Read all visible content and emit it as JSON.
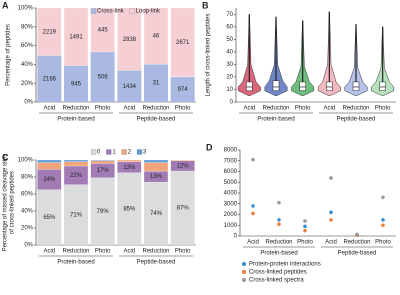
{
  "chart_data": [
    {
      "type": "bar",
      "label": "A",
      "stacking": "percent",
      "ylabel": "Percentage of peptides",
      "categories": [
        "Acid",
        "Reduction",
        "Photo",
        "Acid",
        "Reduction",
        "Photo"
      ],
      "groups": [
        "Protein-based",
        "Peptide-based"
      ],
      "series": [
        {
          "name": "Cross-link",
          "color": "#a9b9e2",
          "values": [
            2166,
            945,
            506,
            1434,
            31,
            974
          ]
        },
        {
          "name": "Loop-link",
          "color": "#f6cfd4",
          "values": [
            2219,
            1491,
            445,
            2838,
            46,
            2671
          ]
        }
      ],
      "ylim": [
        0,
        100
      ],
      "yticks": [
        {
          "value": 0,
          "label": "0%"
        },
        {
          "value": 20,
          "label": "20%"
        },
        {
          "value": 40,
          "label": "40%"
        },
        {
          "value": 60,
          "label": "60%"
        },
        {
          "value": 80,
          "label": "80%"
        },
        {
          "value": 100,
          "label": "100%"
        }
      ],
      "legend": "top"
    },
    {
      "type": "violin",
      "label": "B",
      "ylabel": "Length of cross-linked peptides",
      "categories": [
        "Acid",
        "Reduction",
        "Photo",
        "Acid",
        "Reduction",
        "Photo"
      ],
      "groups": [
        "Protein-based",
        "Peptide-based"
      ],
      "colors": [
        "#d9667a",
        "#6f86c7",
        "#6dbf7e",
        "#f2b8c0",
        "#b5c3e8",
        "#b7e0bd"
      ],
      "min": [
        5,
        5,
        5,
        5,
        5,
        5
      ],
      "q1": [
        9,
        9,
        9,
        9,
        9,
        9
      ],
      "median": [
        12,
        12,
        12,
        12,
        12,
        12
      ],
      "q3": [
        16,
        17,
        16,
        16,
        16,
        16
      ],
      "max": [
        70,
        68,
        65,
        72,
        62,
        60
      ],
      "ylim": [
        0,
        75
      ],
      "yticks": [
        0,
        10,
        20,
        30,
        40,
        50,
        60,
        70
      ]
    },
    {
      "type": "bar",
      "label": "C",
      "stacking": "percent",
      "ylabel": [
        "Percentage of missed cleavage sites",
        "of cross-linked peptides"
      ],
      "categories": [
        "Acid",
        "Reduction",
        "Photo",
        "Acid",
        "Reduction",
        "Photo"
      ],
      "groups": [
        "Protein-based",
        "Peptide-based"
      ],
      "series": [
        {
          "name": "0",
          "color": "#dcdcdc",
          "values": [
            65,
            71,
            79,
            85,
            74,
            87
          ],
          "value_labels": [
            "65%",
            "71%",
            "79%",
            "85%",
            "74%",
            "87%"
          ]
        },
        {
          "name": "1",
          "color": "#a27bb5",
          "values": [
            24,
            22,
            17,
            13,
            13,
            12
          ],
          "value_labels": [
            "24%",
            "22%",
            "17%",
            "13%",
            "13%",
            "12%"
          ]
        },
        {
          "name": "2",
          "color": "#f2a57a",
          "values": [
            8,
            5,
            3,
            2,
            10,
            1
          ]
        },
        {
          "name": "3",
          "color": "#5b9bd5",
          "values": [
            3,
            2,
            1,
            0,
            3,
            0
          ]
        }
      ],
      "ylim": [
        0,
        100
      ],
      "yticks": [
        {
          "value": 0,
          "label": "0%"
        },
        {
          "value": 20,
          "label": "20%"
        },
        {
          "value": 40,
          "label": "40%"
        },
        {
          "value": 60,
          "label": "60%"
        },
        {
          "value": 80,
          "label": "80%"
        },
        {
          "value": 100,
          "label": "100%"
        }
      ],
      "legend": "above"
    },
    {
      "type": "dot",
      "label": "D",
      "categories": [
        "Acid",
        "Reduction",
        "Photo",
        "Acid",
        "Reduction",
        "Photo"
      ],
      "groups": [
        "Protein-based",
        "Peptide-based"
      ],
      "series": [
        {
          "name": "Protein-protein interactions",
          "color": "#3a8fd0",
          "values": [
            2800,
            1500,
            900,
            2200,
            100,
            1500
          ]
        },
        {
          "name": "Cross-linked peptides",
          "color": "#ef7a3a",
          "values": [
            2100,
            1100,
            500,
            1500,
            80,
            1000
          ]
        },
        {
          "name": "Cross-linked spectra",
          "color": "#9b9b9b",
          "values": [
            7100,
            3100,
            1400,
            5400,
            150,
            3600
          ]
        }
      ],
      "ylim": [
        0,
        8000
      ],
      "yticks": [
        0,
        1000,
        2000,
        3000,
        4000,
        5000,
        6000,
        7000,
        8000
      ],
      "legend": "below"
    }
  ]
}
